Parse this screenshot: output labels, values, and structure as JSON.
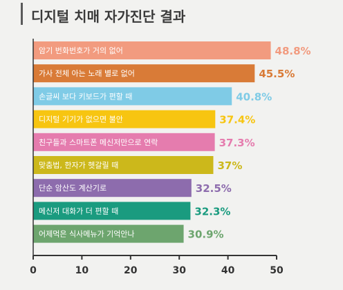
{
  "title": "디지털 치매 자가진단 결과",
  "chart_data": {
    "type": "bar",
    "orientation": "horizontal",
    "title": "디지털 치매 자가진단 결과",
    "xlim": [
      0,
      50
    ],
    "xticks": [
      "0",
      "10",
      "20",
      "30",
      "40",
      "50"
    ],
    "grid": false,
    "categories": [
      "암기 번화번호가 거의 없어",
      "가사 전체 아는 노래 별로 없어",
      "손글씨 보다 키보드가 편할 때",
      "디지털 기기가 없으면 불안",
      "친구들과 스마트폰 메신저만으로 연락",
      "맞춤법, 한자가 헷갈릴 때",
      "단순 암산도 계산기로",
      "메신저 대화가 더 편할 때",
      "어제먹은 식사메뉴가 기억안나"
    ],
    "values": [
      48.8,
      45.5,
      40.8,
      37.4,
      37.3,
      37,
      32.5,
      32.3,
      30.9
    ],
    "value_labels": [
      "48.8%",
      "45.5%",
      "40.8%",
      "37.4%",
      "37.3%",
      "37%",
      "32.5%",
      "32.3%",
      "30.9%"
    ],
    "colors": [
      "#f29b7f",
      "#d97b37",
      "#7fcbe6",
      "#f7c511",
      "#e57cae",
      "#ccb81b",
      "#8d6cad",
      "#1a9b7f",
      "#6da56e"
    ]
  }
}
